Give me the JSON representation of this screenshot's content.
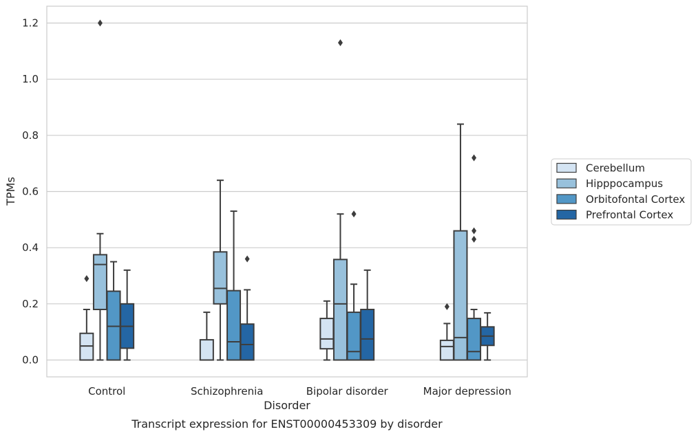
{
  "chart_data": {
    "type": "box",
    "title": "",
    "caption": "Transcript expression for ENST00000453309 by disorder",
    "xlabel": "Disorder",
    "ylabel": "TPMs",
    "ylim": [
      -0.06,
      1.26
    ],
    "yticks": [
      0.0,
      0.2,
      0.4,
      0.6,
      0.8,
      1.0,
      1.2
    ],
    "ytick_labels": [
      "0.0",
      "0.2",
      "0.4",
      "0.6",
      "0.8",
      "1.0",
      "1.2"
    ],
    "grid": true,
    "legend_position": "right",
    "categories": [
      "Control",
      "Schizophrenia",
      "Bipolar disorder",
      "Major depression"
    ],
    "series": [
      {
        "name": "Cerebellum",
        "color": "#d4e4f3",
        "boxes": [
          {
            "q1": 0.0,
            "median": 0.05,
            "q3": 0.095,
            "whisker_low": 0.0,
            "whisker_high": 0.18,
            "outliers": [
              0.29
            ]
          },
          {
            "q1": 0.0,
            "median": 0.0,
            "q3": 0.072,
            "whisker_low": 0.0,
            "whisker_high": 0.17,
            "outliers": []
          },
          {
            "q1": 0.04,
            "median": 0.075,
            "q3": 0.148,
            "whisker_low": 0.0,
            "whisker_high": 0.21,
            "outliers": []
          },
          {
            "q1": 0.0,
            "median": 0.048,
            "q3": 0.07,
            "whisker_low": 0.0,
            "whisker_high": 0.13,
            "outliers": [
              0.19
            ]
          }
        ]
      },
      {
        "name": "Hipppocampus",
        "color": "#98c1dc",
        "boxes": [
          {
            "q1": 0.18,
            "median": 0.34,
            "q3": 0.375,
            "whisker_low": 0.0,
            "whisker_high": 0.45,
            "outliers": [
              1.2
            ]
          },
          {
            "q1": 0.2,
            "median": 0.255,
            "q3": 0.385,
            "whisker_low": 0.0,
            "whisker_high": 0.64,
            "outliers": []
          },
          {
            "q1": 0.0,
            "median": 0.2,
            "q3": 0.358,
            "whisker_low": 0.0,
            "whisker_high": 0.52,
            "outliers": [
              1.13
            ]
          },
          {
            "q1": 0.0,
            "median": 0.08,
            "q3": 0.46,
            "whisker_low": 0.0,
            "whisker_high": 0.84,
            "outliers": []
          }
        ]
      },
      {
        "name": "Orbitofontal Cortex",
        "color": "#5297c6",
        "boxes": [
          {
            "q1": 0.0,
            "median": 0.12,
            "q3": 0.245,
            "whisker_low": 0.0,
            "whisker_high": 0.35,
            "outliers": []
          },
          {
            "q1": 0.0,
            "median": 0.065,
            "q3": 0.247,
            "whisker_low": 0.0,
            "whisker_high": 0.53,
            "outliers": []
          },
          {
            "q1": 0.0,
            "median": 0.03,
            "q3": 0.17,
            "whisker_low": 0.0,
            "whisker_high": 0.27,
            "outliers": [
              0.52
            ]
          },
          {
            "q1": 0.0,
            "median": 0.03,
            "q3": 0.148,
            "whisker_low": 0.0,
            "whisker_high": 0.18,
            "outliers": [
              0.43,
              0.46,
              0.72
            ]
          }
        ]
      },
      {
        "name": "Prefrontal Cortex",
        "color": "#2466a4",
        "boxes": [
          {
            "q1": 0.042,
            "median": 0.12,
            "q3": 0.2,
            "whisker_low": 0.0,
            "whisker_high": 0.32,
            "outliers": []
          },
          {
            "q1": 0.0,
            "median": 0.055,
            "q3": 0.128,
            "whisker_low": 0.0,
            "whisker_high": 0.25,
            "outliers": [
              0.36
            ]
          },
          {
            "q1": 0.0,
            "median": 0.075,
            "q3": 0.18,
            "whisker_low": 0.0,
            "whisker_high": 0.32,
            "outliers": []
          },
          {
            "q1": 0.052,
            "median": 0.085,
            "q3": 0.118,
            "whisker_low": 0.0,
            "whisker_high": 0.168,
            "outliers": []
          }
        ]
      }
    ]
  }
}
